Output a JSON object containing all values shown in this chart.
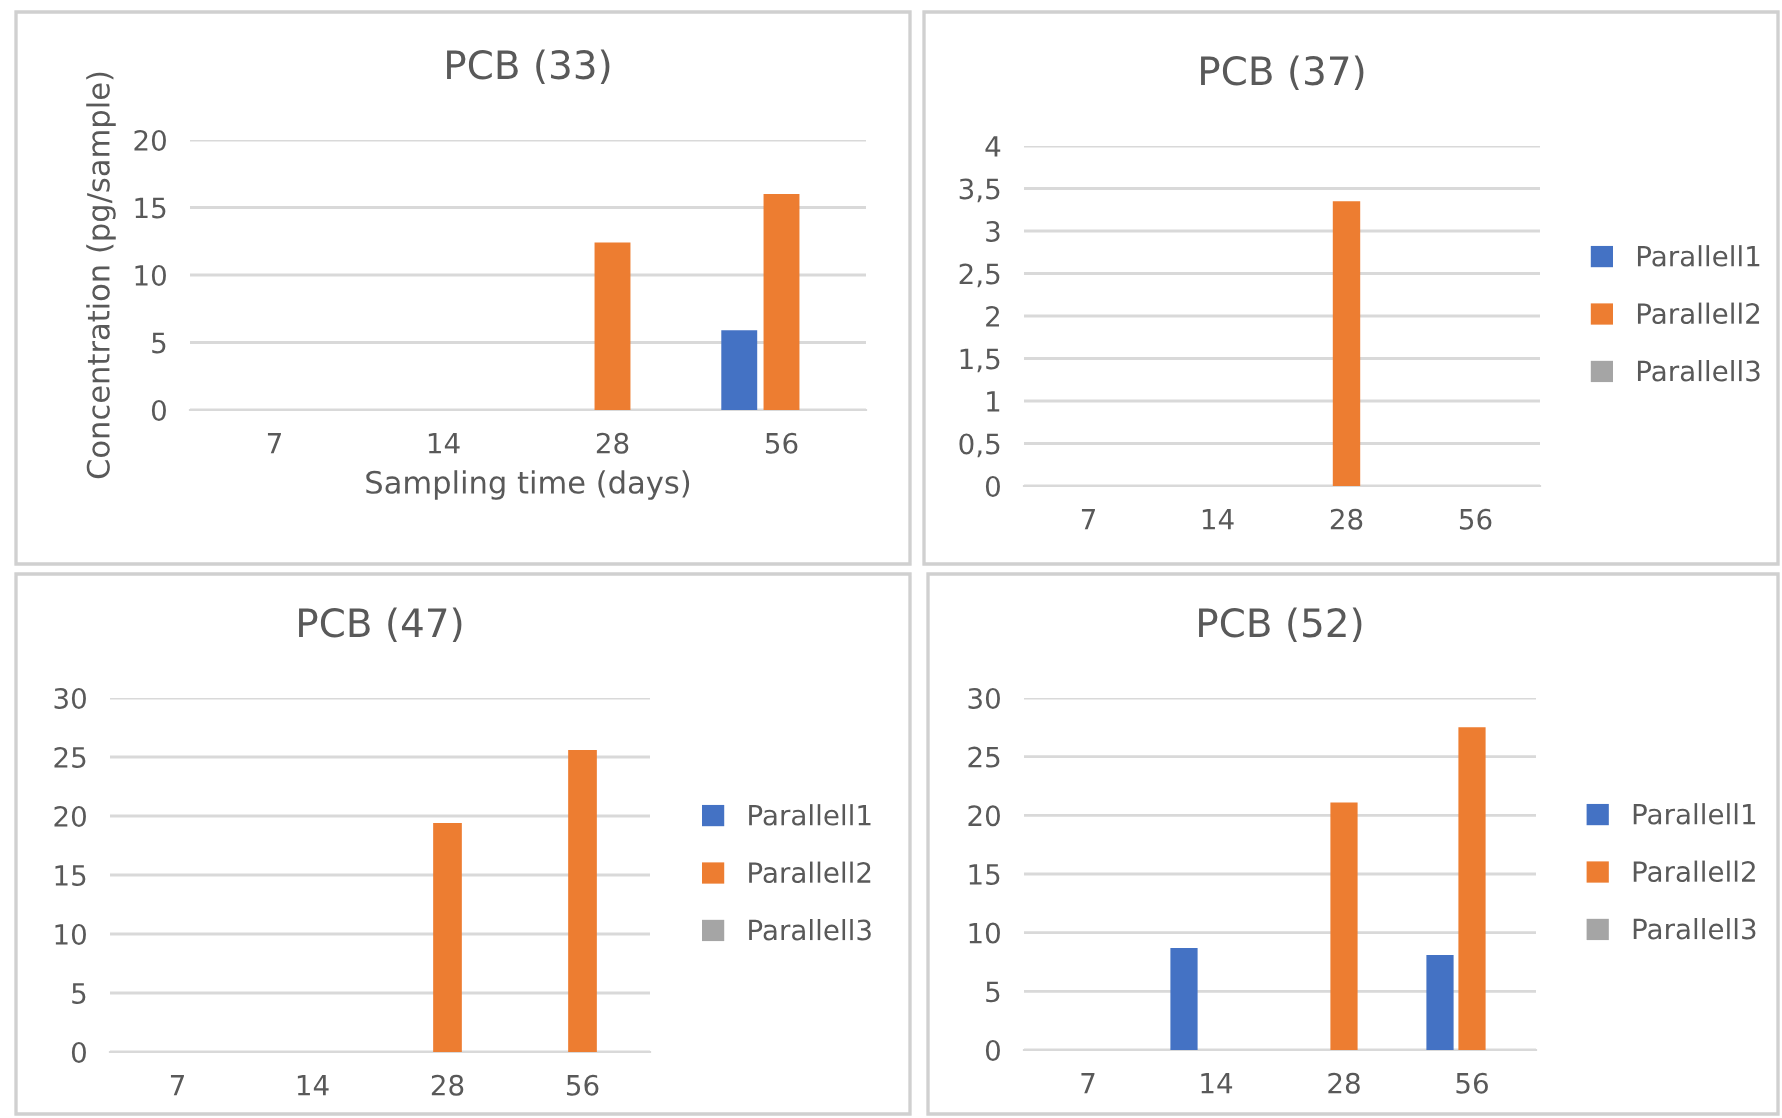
{
  "chart_data": [
    {
      "type": "bar",
      "title": "PCB (33)",
      "xlabel": "Sampling time (days)",
      "ylabel": "Concentration (pg/sample)",
      "categories": [
        "7",
        "14",
        "28",
        "56"
      ],
      "series": [
        {
          "color": "#4472c4",
          "values": [
            0,
            0,
            0,
            5.9
          ]
        },
        {
          "color": "#ed7d31",
          "values": [
            0,
            0,
            12.4,
            16
          ]
        },
        {
          "color": "#a5a5a5",
          "values": [
            0,
            0,
            0,
            0
          ]
        }
      ],
      "ylim": [
        0,
        20
      ],
      "yticks": [
        0,
        5,
        10,
        15,
        20
      ],
      "grid": "y",
      "legend": false
    },
    {
      "type": "bar",
      "title": "PCB (37)",
      "categories": [
        "7",
        "14",
        "28",
        "56"
      ],
      "series": [
        {
          "name": "Parallell1",
          "color": "#4472c4",
          "values": [
            0,
            0,
            0,
            0
          ]
        },
        {
          "name": "Parallell2",
          "color": "#ed7d31",
          "values": [
            0,
            0,
            3.35,
            0
          ]
        },
        {
          "name": "Parallell3",
          "color": "#a5a5a5",
          "values": [
            0,
            0,
            0,
            0
          ]
        }
      ],
      "ylim": [
        0,
        4
      ],
      "yticks": [
        0,
        {
          "value": 0.5,
          "label": "0,5"
        },
        1,
        {
          "value": 1.5,
          "label": "1,5"
        },
        2,
        {
          "value": 2.5,
          "label": "2,5"
        },
        3,
        {
          "value": 3.5,
          "label": "3,5"
        },
        4
      ],
      "grid": "y",
      "legend": "right"
    },
    {
      "type": "bar",
      "title": "PCB (47)",
      "categories": [
        "7",
        "14",
        "28",
        "56"
      ],
      "series": [
        {
          "name": "Parallell1",
          "color": "#4472c4",
          "values": [
            0,
            0,
            0,
            0
          ]
        },
        {
          "name": "Parallell2",
          "color": "#ed7d31",
          "values": [
            0,
            0,
            19.4,
            25.6
          ]
        },
        {
          "name": "Parallell3",
          "color": "#a5a5a5",
          "values": [
            0,
            0,
            0,
            0
          ]
        }
      ],
      "ylim": [
        0,
        30
      ],
      "yticks": [
        0,
        5,
        10,
        15,
        20,
        25,
        30
      ],
      "grid": "y",
      "legend": "right"
    },
    {
      "type": "bar",
      "title": "PCB (52)",
      "categories": [
        "7",
        "14",
        "28",
        "56"
      ],
      "series": [
        {
          "name": "Parallell1",
          "color": "#4472c4",
          "values": [
            0,
            8.7,
            0,
            8.1
          ]
        },
        {
          "name": "Parallell2",
          "color": "#ed7d31",
          "values": [
            0,
            0,
            21.1,
            27.5
          ]
        },
        {
          "name": "Parallell3",
          "color": "#a5a5a5",
          "values": [
            0,
            0,
            0,
            0
          ]
        }
      ],
      "ylim": [
        0,
        30
      ],
      "yticks": [
        0,
        5,
        10,
        15,
        20,
        25,
        30
      ],
      "grid": "y",
      "legend": "right"
    }
  ]
}
